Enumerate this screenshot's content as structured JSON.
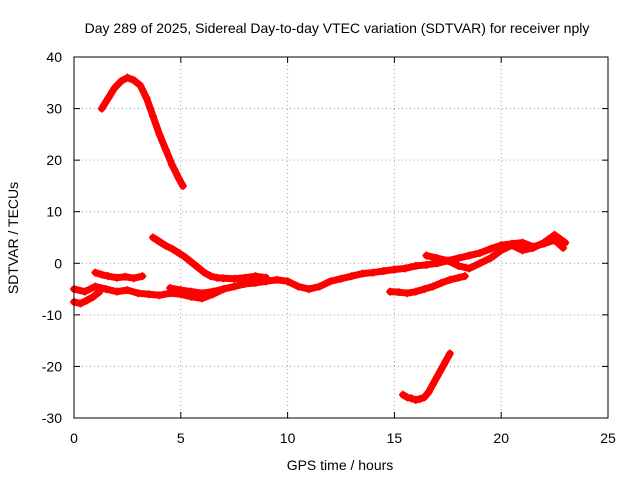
{
  "chart_data": {
    "type": "scatter",
    "title": "Day 289 of 2025, Sidereal Day-to-day VTEC variation (SDTVAR) for receiver nply",
    "xlabel": "GPS time / hours",
    "ylabel": "SDTVAR / TECUs",
    "xlim": [
      0,
      25
    ],
    "ylim": [
      -30,
      40
    ],
    "x_ticks": [
      0,
      5,
      10,
      15,
      20,
      25
    ],
    "y_ticks": [
      -30,
      -20,
      -10,
      0,
      10,
      20,
      30,
      40
    ],
    "grid": true,
    "marker": "+",
    "color": "#ff0000",
    "series": [
      {
        "name": "arc-early-high",
        "x": [
          1.3,
          1.6,
          1.9,
          2.2,
          2.5,
          2.8,
          3.1,
          3.4,
          3.7,
          4.0,
          4.3,
          4.6,
          4.9,
          5.1
        ],
        "y": [
          30,
          32,
          34,
          35.3,
          36,
          35.5,
          34.5,
          32,
          28.5,
          25,
          22,
          19,
          16.5,
          15
        ]
      },
      {
        "name": "arc-main-lower",
        "x": [
          0,
          0.5,
          1.0,
          1.5,
          2.0,
          2.5,
          3.0,
          3.5,
          4.0,
          4.5,
          5.0,
          5.5,
          6.0,
          6.5,
          7.0,
          7.5,
          8.0,
          8.5,
          9.0,
          9.5,
          10.0,
          10.5,
          11.0,
          11.5,
          12.0,
          12.5,
          13.0,
          13.5,
          14.0,
          14.5,
          15.0,
          15.5,
          16.0,
          16.5,
          17.0,
          17.5,
          18.0,
          18.5,
          19.0,
          19.5,
          20.0,
          20.5,
          21.0,
          21.5,
          22.0,
          22.5,
          22.9
        ],
        "y": [
          -5,
          -5.5,
          -4.5,
          -5,
          -5.5,
          -5.2,
          -5.8,
          -6,
          -6.2,
          -5.8,
          -6,
          -6.5,
          -6.8,
          -6,
          -5,
          -4.5,
          -4,
          -3.8,
          -3.5,
          -3.2,
          -3.5,
          -4.5,
          -5,
          -4.5,
          -3.5,
          -3,
          -2.5,
          -2,
          -1.8,
          -1.5,
          -1.2,
          -1,
          -0.5,
          -0.3,
          0,
          0.5,
          1,
          1.5,
          2,
          2.8,
          3.5,
          3.8,
          4,
          3.2,
          3.8,
          4.5,
          3
        ]
      },
      {
        "name": "arc-early-low",
        "x": [
          0,
          0.3,
          0.6,
          0.9,
          1.2
        ],
        "y": [
          -7.5,
          -7.8,
          -7.2,
          -6.5,
          -5.5
        ]
      },
      {
        "name": "arc-early-mid",
        "x": [
          1.0,
          1.3,
          1.6,
          2.0,
          2.4,
          2.8,
          3.2
        ],
        "y": [
          -1.8,
          -2.2,
          -2.5,
          -2.8,
          -2.6,
          -2.9,
          -2.5
        ]
      },
      {
        "name": "arc-descending",
        "x": [
          3.7,
          4.0,
          4.3,
          4.6,
          4.9,
          5.2,
          5.5,
          5.8,
          6.1,
          6.4,
          6.7,
          7.0,
          7.5,
          8.0,
          8.5,
          9.0
        ],
        "y": [
          5,
          4.2,
          3.4,
          2.8,
          2,
          1.2,
          0.2,
          -0.8,
          -1.8,
          -2.5,
          -2.8,
          -2.9,
          -3,
          -2.8,
          -2.5,
          -2.8
        ]
      },
      {
        "name": "arc-mid-segment",
        "x": [
          4.5,
          5.0,
          5.5,
          6.0,
          6.5,
          7.0
        ],
        "y": [
          -4.8,
          -5.2,
          -5.5,
          -5.8,
          -5.5,
          -5
        ]
      },
      {
        "name": "arc-afternoon",
        "x": [
          14.8,
          15.2,
          15.6,
          16.0,
          16.4,
          16.8,
          17.2,
          17.6,
          18.0,
          18.3
        ],
        "y": [
          -5.5,
          -5.6,
          -5.8,
          -5.5,
          -5,
          -4.5,
          -3.8,
          -3.2,
          -2.8,
          -2.5
        ]
      },
      {
        "name": "arc-late-overlap",
        "x": [
          16.5,
          17.0,
          17.5,
          18.0,
          18.5,
          19.0,
          19.5,
          20.0,
          20.5,
          21.0,
          21.5,
          22.0,
          22.5,
          23.0
        ],
        "y": [
          1.5,
          1,
          0.5,
          -0.5,
          -1,
          0,
          1,
          2.5,
          3.5,
          2.5,
          3,
          4,
          5.5,
          4
        ]
      },
      {
        "name": "arc-dip",
        "x": [
          15.4,
          15.6,
          15.8,
          16.0,
          16.2,
          16.4,
          16.6,
          16.8,
          17.0,
          17.2,
          17.4,
          17.6
        ],
        "y": [
          -25.5,
          -26,
          -26.2,
          -26.5,
          -26.3,
          -26,
          -25,
          -23.5,
          -22,
          -20.5,
          -19,
          -17.5
        ]
      }
    ]
  }
}
